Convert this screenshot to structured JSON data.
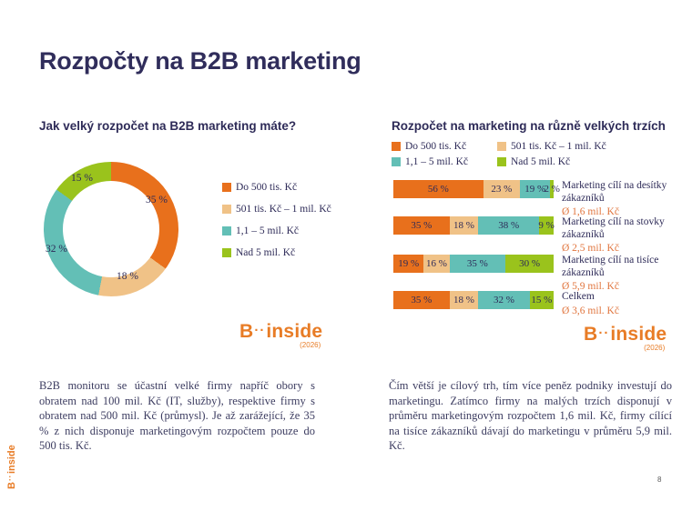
{
  "title": "Rozpočty na B2B marketing",
  "page_number": "8",
  "brand": {
    "b": "B",
    "dots": "··",
    "rest": "inside",
    "year": "(2026)"
  },
  "colors": {
    "orange": "#e8701c",
    "tan": "#f0c287",
    "teal": "#63bfb6",
    "green": "#9ac31c",
    "navy": "#2e2b58"
  },
  "left": {
    "heading": "Jak velký rozpočet na B2B marketing máte?",
    "donut_labels": [
      "35 %",
      "18 %",
      "32 %",
      "15 %"
    ],
    "legend": [
      "Do 500 tis. Kč",
      "501 tis. Kč – 1 mil. Kč",
      "1,1 – 5 mil. Kč",
      "Nad 5 mil. Kč"
    ],
    "paragraph": "B2B monitoru se účastní velké firmy napříč obory s obratem nad 100 mil. Kč (IT, služby), respektive firmy s obratem nad 500 mil. Kč (průmysl). Je až zarážející, že 35 % z nich disponuje marketingovým rozpočtem pouze do 500 tis. Kč."
  },
  "right": {
    "heading": "Rozpočet na marketing na různě velkých trzích",
    "legend": [
      "Do 500 tis. Kč",
      "501 tis. Kč – 1 mil. Kč",
      "1,1 – 5 mil. Kč",
      "Nad 5 mil. Kč"
    ],
    "bars": [
      {
        "segments": [
          {
            "label": "56 %",
            "pct": 56
          },
          {
            "label": "23 %",
            "pct": 23
          },
          {
            "label": "19 %",
            "pct": 19
          },
          {
            "label": "2 %",
            "pct": 2
          }
        ],
        "name_line1": "Marketing cílí na desítky",
        "name_line2": "zákazníků",
        "avg": "Ø 1,6 mil. Kč"
      },
      {
        "segments": [
          {
            "label": "35 %",
            "pct": 35
          },
          {
            "label": "18 %",
            "pct": 18
          },
          {
            "label": "38 %",
            "pct": 38
          },
          {
            "label": "9 %",
            "pct": 9
          }
        ],
        "name_line1": "Marketing cílí na stovky",
        "name_line2": "zákazníků",
        "avg": "Ø 2,5 mil. Kč"
      },
      {
        "segments": [
          {
            "label": "19 %",
            "pct": 19
          },
          {
            "label": "16 %",
            "pct": 16
          },
          {
            "label": "35 %",
            "pct": 35
          },
          {
            "label": "30 %",
            "pct": 30
          }
        ],
        "name_line1": "Marketing cílí na tisíce",
        "name_line2": "zákazníků",
        "avg": "Ø 5,9 mil. Kč"
      },
      {
        "segments": [
          {
            "label": "35 %",
            "pct": 35
          },
          {
            "label": "18 %",
            "pct": 18
          },
          {
            "label": "32 %",
            "pct": 32
          },
          {
            "label": "15 %",
            "pct": 15
          }
        ],
        "name_line1": "Celkem",
        "name_line2": "",
        "avg": "Ø 3,6 mil. Kč"
      }
    ],
    "paragraph": "Čím větší je cílový trh, tím více peněz podniky investují do marketingu. Zatímco firmy na malých trzích disponují v průměru marketingovým rozpočtem 1,6 mil. Kč, firmy cílící na tisíce zákazníků dávají do marketingu v průměru 5,9 mil. Kč."
  },
  "chart_data": [
    {
      "type": "pie",
      "subtype": "donut",
      "title": "Jak velký rozpočet na B2B marketing máte?",
      "labels": [
        "Do 500 tis. Kč",
        "501 tis. Kč – 1 mil. Kč",
        "1,1 – 5 mil. Kč",
        "Nad 5 mil. Kč"
      ],
      "values": [
        35,
        18,
        32,
        15
      ],
      "unit": "%",
      "colors": [
        "#e8701c",
        "#f0c287",
        "#63bfb6",
        "#9ac31c"
      ],
      "start_angle": "top",
      "direction": "clockwise",
      "legend_position": "right"
    },
    {
      "type": "bar",
      "subtype": "stacked-horizontal",
      "title": "Rozpočet na marketing na různě velkých trzích",
      "categories": [
        "Marketing cílí na desítky zákazníků",
        "Marketing cílí na stovky zákazníků",
        "Marketing cílí na tisíce zákazníků",
        "Celkem"
      ],
      "series": [
        {
          "name": "Do 500 tis. Kč",
          "values": [
            56,
            35,
            19,
            35
          ]
        },
        {
          "name": "501 tis. Kč – 1 mil. Kč",
          "values": [
            23,
            18,
            16,
            18
          ]
        },
        {
          "name": "1,1 – 5 mil. Kč",
          "values": [
            19,
            38,
            35,
            32
          ]
        },
        {
          "name": "Nad 5 mil. Kč",
          "values": [
            2,
            9,
            30,
            15
          ]
        }
      ],
      "unit": "%",
      "annotations": [
        "Ø 1,6 mil. Kč",
        "Ø 2,5 mil. Kč",
        "Ø 5,9 mil. Kč",
        "Ø 3,6 mil. Kč"
      ],
      "colors": [
        "#e8701c",
        "#f0c287",
        "#63bfb6",
        "#9ac31c"
      ],
      "xlim": [
        0,
        100
      ],
      "legend_position": "top"
    }
  ]
}
